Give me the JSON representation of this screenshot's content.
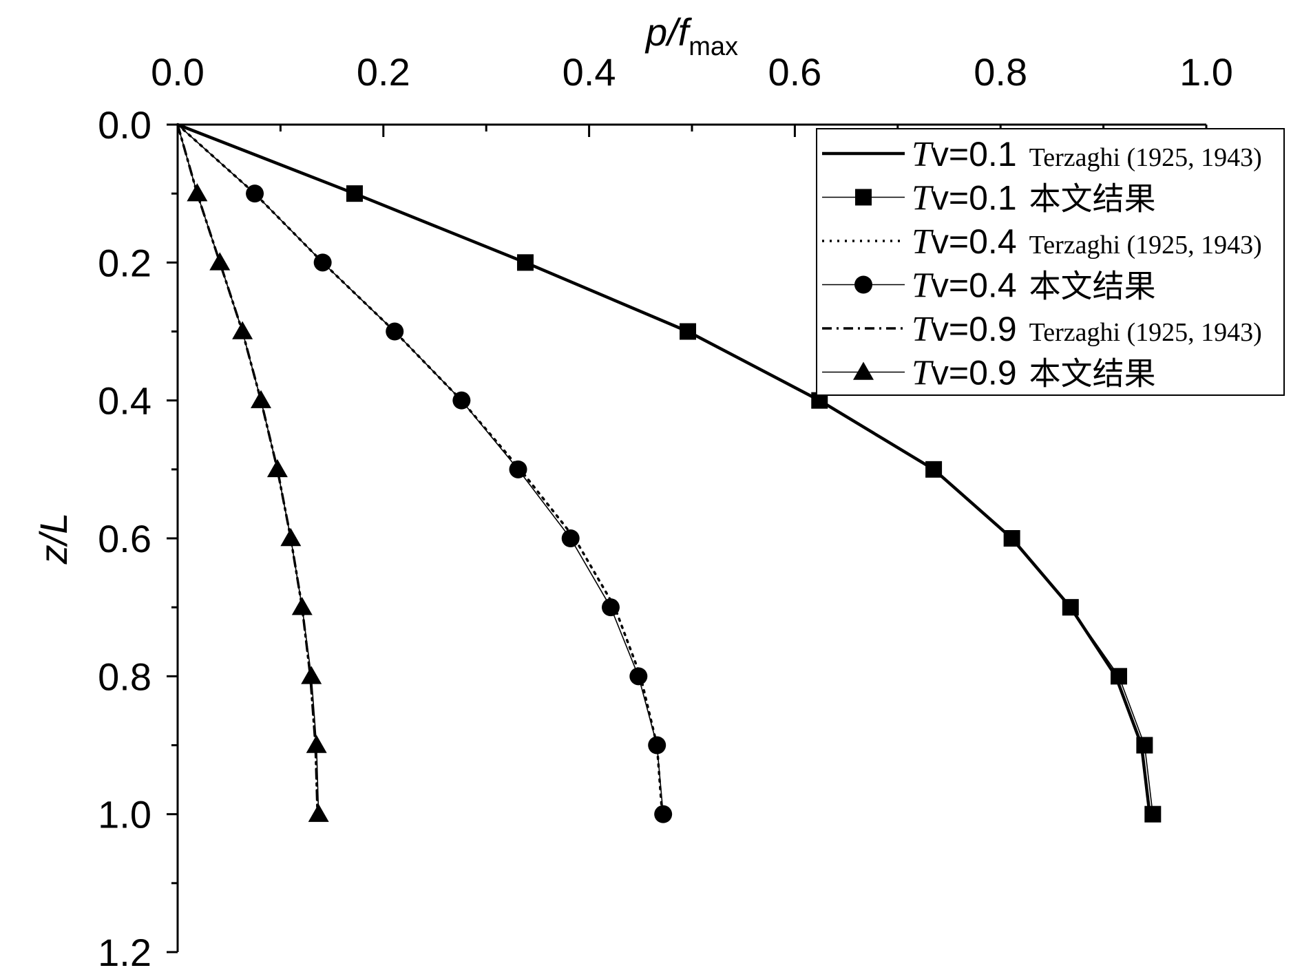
{
  "chart_data": {
    "type": "line",
    "xlabel": {
      "main": "p/f",
      "sub": "max"
    },
    "ylabel": "z/L",
    "xlim": [
      0,
      1.0
    ],
    "ylim": [
      0,
      1.2
    ],
    "x_axis_position": "top",
    "y_axis_inverted": true,
    "x_ticks": [
      "0.0",
      "0.2",
      "0.4",
      "0.6",
      "0.8",
      "1.0"
    ],
    "y_ticks": [
      "0.0",
      "0.2",
      "0.4",
      "0.6",
      "0.8",
      "1.0",
      "1.2"
    ],
    "grid": false,
    "legend_position": "top-right",
    "series": [
      {
        "name": "Tv=0.1 Terzaghi (1925, 1943)",
        "legend": {
          "sym": "T",
          "mid": "v",
          "value": "=0.1",
          "ref": "Terzaghi (1925, 1943)"
        },
        "style": "solid-thick",
        "marker": "none",
        "z": [
          0,
          0.1,
          0.2,
          0.3,
          0.4,
          0.5,
          0.6,
          0.7,
          0.8,
          0.9,
          1.0
        ],
        "p": [
          0,
          0.172,
          0.338,
          0.496,
          0.624,
          0.735,
          0.811,
          0.868,
          0.912,
          0.937,
          0.945
        ]
      },
      {
        "name": "Tv=0.1 本文结果",
        "legend": {
          "sym": "T",
          "mid": "v",
          "value": "=0.1",
          "ref": "本文结果"
        },
        "style": "solid-thin",
        "marker": "square",
        "z": [
          0,
          0.1,
          0.2,
          0.3,
          0.4,
          0.5,
          0.6,
          0.7,
          0.8,
          0.9,
          1.0
        ],
        "p": [
          0,
          0.172,
          0.338,
          0.496,
          0.624,
          0.735,
          0.811,
          0.868,
          0.915,
          0.94,
          0.948
        ]
      },
      {
        "name": "Tv=0.4 Terzaghi (1925, 1943)",
        "legend": {
          "sym": "T",
          "mid": "v",
          "value": "=0.4",
          "ref": "Terzaghi (1925, 1943)"
        },
        "style": "dotted",
        "marker": "none",
        "z": [
          0,
          0.1,
          0.2,
          0.3,
          0.4,
          0.5,
          0.6,
          0.7,
          0.8,
          0.9,
          1.0
        ],
        "p": [
          0,
          0.075,
          0.141,
          0.211,
          0.276,
          0.333,
          0.386,
          0.425,
          0.45,
          0.466,
          0.471
        ]
      },
      {
        "name": "Tv=0.4 本文结果",
        "legend": {
          "sym": "T",
          "mid": "v",
          "value": "=0.4",
          "ref": "本文结果"
        },
        "style": "solid-thin",
        "marker": "circle",
        "z": [
          0,
          0.1,
          0.2,
          0.3,
          0.4,
          0.5,
          0.6,
          0.7,
          0.8,
          0.9,
          1.0
        ],
        "p": [
          0,
          0.075,
          0.141,
          0.211,
          0.276,
          0.331,
          0.382,
          0.421,
          0.448,
          0.466,
          0.472
        ]
      },
      {
        "name": "Tv=0.9 Terzaghi (1925, 1943)",
        "legend": {
          "sym": "T",
          "mid": "v",
          "value": "=0.9",
          "ref": "Terzaghi (1925, 1943)"
        },
        "style": "dashdot",
        "marker": "none",
        "z": [
          0,
          0.1,
          0.2,
          0.3,
          0.4,
          0.5,
          0.6,
          0.7,
          0.8,
          0.9,
          1.0
        ],
        "p": [
          0,
          0.019,
          0.041,
          0.063,
          0.081,
          0.097,
          0.11,
          0.121,
          0.129,
          0.134,
          0.136
        ]
      },
      {
        "name": "Tv=0.9 本文结果",
        "legend": {
          "sym": "T",
          "mid": "v",
          "value": "=0.9",
          "ref": "本文结果"
        },
        "style": "solid-thin",
        "marker": "triangle",
        "z": [
          0,
          0.1,
          0.2,
          0.3,
          0.4,
          0.5,
          0.6,
          0.7,
          0.8,
          0.9,
          1.0
        ],
        "p": [
          0,
          0.019,
          0.041,
          0.063,
          0.081,
          0.097,
          0.11,
          0.121,
          0.13,
          0.135,
          0.137
        ]
      }
    ]
  }
}
